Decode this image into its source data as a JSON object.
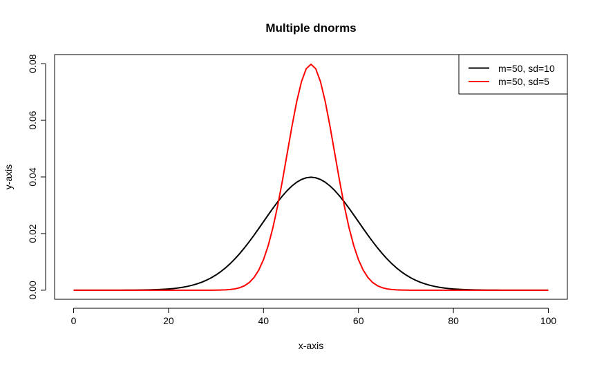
{
  "chart_data": {
    "type": "line",
    "title": "Multiple dnorms",
    "xlabel": "x-axis",
    "ylabel": "y-axis",
    "xlim": [
      -4,
      104
    ],
    "ylim": [
      -0.0032,
      0.0832
    ],
    "x_ticks": [
      0,
      20,
      40,
      60,
      80,
      100
    ],
    "x_tick_labels": [
      "0",
      "20",
      "40",
      "60",
      "80",
      "100"
    ],
    "y_ticks": [
      0,
      0.02,
      0.04,
      0.06,
      0.08
    ],
    "y_tick_labels": [
      "0.00",
      "0.02",
      "0.04",
      "0.06",
      "0.08"
    ],
    "grid": false,
    "legend_position": "top-right",
    "series": [
      {
        "name": "m=50, sd=10",
        "mean": 50,
        "sd": 10,
        "color": "#000000"
      },
      {
        "name": "m=50, sd=5",
        "mean": 50,
        "sd": 5,
        "color": "#ff0000"
      }
    ],
    "x_range": [
      0,
      100
    ],
    "x_step": 1
  }
}
